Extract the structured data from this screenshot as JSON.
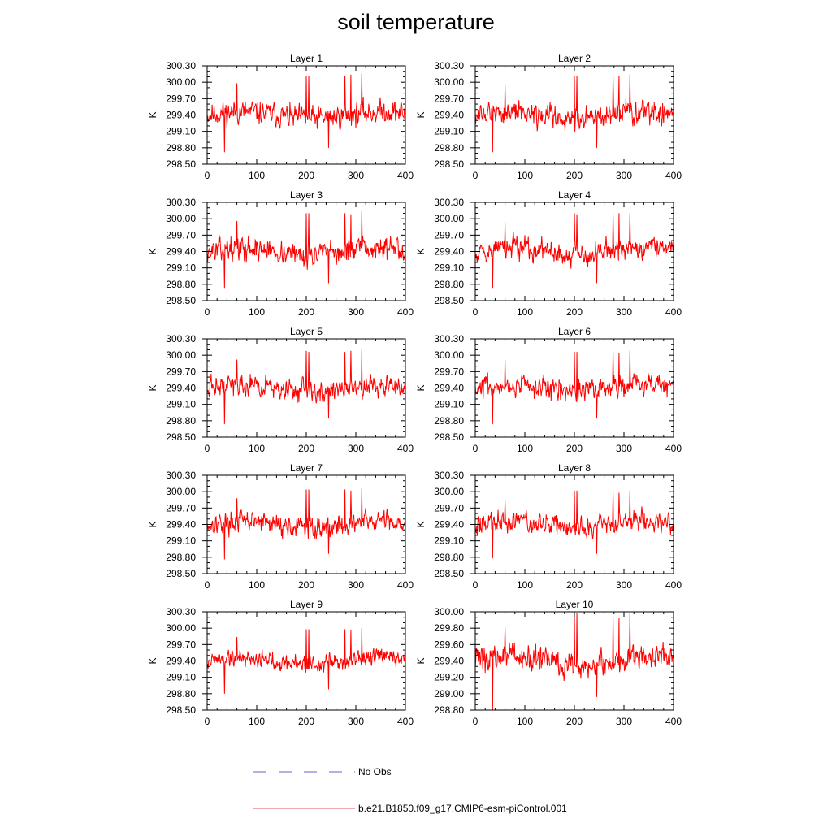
{
  "title": "soil temperature",
  "legend": [
    {
      "label": "No Obs",
      "color": "#6666cc",
      "style": "dashed"
    },
    {
      "label": "b.e21.B1850.f09_g17.CMIP6-esm-piControl.001",
      "color": "#e05050",
      "style": "solid"
    }
  ],
  "colors": {
    "series": "#ff0000",
    "axis": "#000000"
  },
  "chart_data": [
    {
      "type": "line",
      "title": "Layer 1",
      "ylabel": "K",
      "xlim": [
        0,
        400
      ],
      "ylim": [
        298.5,
        300.3
      ],
      "xticks": [
        0,
        100,
        200,
        300,
        400
      ],
      "yticks": [
        "300.30",
        "300.00",
        "299.70",
        "299.40",
        "299.10",
        "298.80",
        "298.50"
      ],
      "mean": 299.4,
      "amplitude": 0.28,
      "seed": 11,
      "n": 400,
      "spikes": [
        [
          35,
          298.72
        ],
        [
          60,
          299.98
        ],
        [
          200,
          300.12
        ],
        [
          205,
          300.12
        ],
        [
          245,
          298.8
        ],
        [
          278,
          300.12
        ],
        [
          290,
          300.14
        ],
        [
          312,
          300.16
        ]
      ]
    },
    {
      "type": "line",
      "title": "Layer 2",
      "ylabel": "K",
      "xlim": [
        0,
        400
      ],
      "ylim": [
        298.5,
        300.3
      ],
      "xticks": [
        0,
        100,
        200,
        300,
        400
      ],
      "yticks": [
        "300.30",
        "300.00",
        "299.70",
        "299.40",
        "299.10",
        "298.80",
        "298.50"
      ],
      "mean": 299.4,
      "amplitude": 0.28,
      "seed": 12,
      "n": 400,
      "spikes": [
        [
          35,
          298.72
        ],
        [
          60,
          299.96
        ],
        [
          200,
          300.12
        ],
        [
          205,
          300.12
        ],
        [
          245,
          298.8
        ],
        [
          278,
          300.1
        ],
        [
          290,
          300.12
        ],
        [
          312,
          300.14
        ]
      ]
    },
    {
      "type": "line",
      "title": "Layer 3",
      "ylabel": "K",
      "xlim": [
        0,
        400
      ],
      "ylim": [
        298.5,
        300.3
      ],
      "xticks": [
        0,
        100,
        200,
        300,
        400
      ],
      "yticks": [
        "300.30",
        "300.00",
        "299.70",
        "299.40",
        "299.10",
        "298.80",
        "298.50"
      ],
      "mean": 299.4,
      "amplitude": 0.27,
      "seed": 13,
      "n": 400,
      "spikes": [
        [
          35,
          298.72
        ],
        [
          60,
          299.96
        ],
        [
          200,
          300.1
        ],
        [
          205,
          300.1
        ],
        [
          245,
          298.82
        ],
        [
          278,
          300.1
        ],
        [
          290,
          300.08
        ],
        [
          312,
          300.14
        ]
      ]
    },
    {
      "type": "line",
      "title": "Layer 4",
      "ylabel": "K",
      "xlim": [
        0,
        400
      ],
      "ylim": [
        298.5,
        300.3
      ],
      "xticks": [
        0,
        100,
        200,
        300,
        400
      ],
      "yticks": [
        "300.30",
        "300.00",
        "299.70",
        "299.40",
        "299.10",
        "298.80",
        "298.50"
      ],
      "mean": 299.4,
      "amplitude": 0.27,
      "seed": 14,
      "n": 400,
      "spikes": [
        [
          35,
          298.72
        ],
        [
          60,
          299.94
        ],
        [
          200,
          300.1
        ],
        [
          205,
          300.08
        ],
        [
          245,
          298.82
        ],
        [
          278,
          300.08
        ],
        [
          290,
          300.1
        ],
        [
          312,
          300.1
        ]
      ]
    },
    {
      "type": "line",
      "title": "Layer 5",
      "ylabel": "K",
      "xlim": [
        0,
        400
      ],
      "ylim": [
        298.5,
        300.3
      ],
      "xticks": [
        0,
        100,
        200,
        300,
        400
      ],
      "yticks": [
        "300.30",
        "300.00",
        "299.70",
        "299.40",
        "299.10",
        "298.80",
        "298.50"
      ],
      "mean": 299.4,
      "amplitude": 0.26,
      "seed": 15,
      "n": 400,
      "spikes": [
        [
          35,
          298.74
        ],
        [
          60,
          299.92
        ],
        [
          200,
          300.08
        ],
        [
          205,
          300.06
        ],
        [
          245,
          298.84
        ],
        [
          278,
          300.06
        ],
        [
          290,
          300.08
        ],
        [
          312,
          300.1
        ]
      ]
    },
    {
      "type": "line",
      "title": "Layer 6",
      "ylabel": "K",
      "xlim": [
        0,
        400
      ],
      "ylim": [
        298.5,
        300.3
      ],
      "xticks": [
        0,
        100,
        200,
        300,
        400
      ],
      "yticks": [
        "300.30",
        "300.00",
        "299.70",
        "299.40",
        "299.10",
        "298.80",
        "298.50"
      ],
      "mean": 299.4,
      "amplitude": 0.26,
      "seed": 16,
      "n": 400,
      "spikes": [
        [
          35,
          298.74
        ],
        [
          60,
          299.92
        ],
        [
          200,
          300.06
        ],
        [
          205,
          300.06
        ],
        [
          245,
          298.84
        ],
        [
          278,
          300.06
        ],
        [
          290,
          300.04
        ],
        [
          312,
          300.08
        ]
      ]
    },
    {
      "type": "line",
      "title": "Layer 7",
      "ylabel": "K",
      "xlim": [
        0,
        400
      ],
      "ylim": [
        298.5,
        300.3
      ],
      "xticks": [
        0,
        100,
        200,
        300,
        400
      ],
      "yticks": [
        "300.30",
        "300.00",
        "299.70",
        "299.40",
        "299.10",
        "298.80",
        "298.50"
      ],
      "mean": 299.4,
      "amplitude": 0.25,
      "seed": 17,
      "n": 400,
      "spikes": [
        [
          35,
          298.76
        ],
        [
          60,
          299.88
        ],
        [
          200,
          300.04
        ],
        [
          205,
          300.04
        ],
        [
          245,
          298.86
        ],
        [
          278,
          300.04
        ],
        [
          290,
          300.02
        ],
        [
          312,
          300.06
        ]
      ]
    },
    {
      "type": "line",
      "title": "Layer 8",
      "ylabel": "K",
      "xlim": [
        0,
        400
      ],
      "ylim": [
        298.5,
        300.3
      ],
      "xticks": [
        0,
        100,
        200,
        300,
        400
      ],
      "yticks": [
        "300.30",
        "300.00",
        "299.70",
        "299.40",
        "299.10",
        "298.80",
        "298.50"
      ],
      "mean": 299.4,
      "amplitude": 0.24,
      "seed": 18,
      "n": 400,
      "spikes": [
        [
          35,
          298.78
        ],
        [
          60,
          299.86
        ],
        [
          200,
          300.02
        ],
        [
          205,
          300.02
        ],
        [
          245,
          298.86
        ],
        [
          278,
          300.0
        ],
        [
          290,
          299.98
        ],
        [
          312,
          300.02
        ]
      ]
    },
    {
      "type": "line",
      "title": "Layer 9",
      "ylabel": "K",
      "xlim": [
        0,
        400
      ],
      "ylim": [
        298.5,
        300.3
      ],
      "xticks": [
        0,
        100,
        200,
        300,
        400
      ],
      "yticks": [
        "300.30",
        "300.00",
        "299.70",
        "299.40",
        "299.10",
        "298.80",
        "298.50"
      ],
      "mean": 299.4,
      "amplitude": 0.22,
      "seed": 19,
      "n": 400,
      "spikes": [
        [
          35,
          298.8
        ],
        [
          60,
          299.84
        ],
        [
          200,
          299.98
        ],
        [
          205,
          299.98
        ],
        [
          245,
          298.88
        ],
        [
          278,
          299.98
        ],
        [
          290,
          299.96
        ],
        [
          312,
          300.0
        ]
      ]
    },
    {
      "type": "line",
      "title": "Layer 10",
      "ylabel": "K",
      "xlim": [
        0,
        400
      ],
      "ylim": [
        298.8,
        300.0
      ],
      "xticks": [
        0,
        100,
        200,
        300,
        400
      ],
      "yticks": [
        "300.00",
        "299.80",
        "299.60",
        "299.40",
        "299.20",
        "299.00",
        "298.80"
      ],
      "mean": 299.4,
      "amplitude": 0.2,
      "seed": 20,
      "n": 400,
      "spikes": [
        [
          35,
          298.8
        ],
        [
          60,
          299.82
        ],
        [
          200,
          299.96
        ],
        [
          205,
          299.98
        ],
        [
          245,
          298.96
        ],
        [
          278,
          299.94
        ],
        [
          290,
          299.92
        ],
        [
          312,
          299.98
        ]
      ]
    }
  ]
}
